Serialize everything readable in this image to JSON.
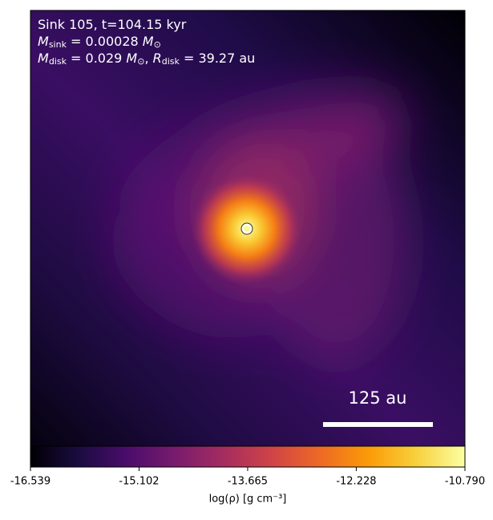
{
  "chart_data": {
    "type": "image",
    "annotation_lines": [
      [
        {
          "text": "Sink 105, t=104.15 kyr"
        }
      ],
      [
        {
          "text": "M",
          "style": "italic"
        },
        {
          "text": "sink",
          "style": "sub"
        },
        {
          "text": " = 0.00028 "
        },
        {
          "text": "M",
          "style": "italic"
        },
        {
          "text": "⊙",
          "style": "sub"
        }
      ],
      [
        {
          "text": "M",
          "style": "italic"
        },
        {
          "text": "disk",
          "style": "sub"
        },
        {
          "text": " = 0.029 "
        },
        {
          "text": "M",
          "style": "italic"
        },
        {
          "text": "⊙",
          "style": "sub"
        },
        {
          "text": ", "
        },
        {
          "text": "R",
          "style": "italic"
        },
        {
          "text": "disk",
          "style": "sub"
        },
        {
          "text": " = 39.27 au"
        }
      ]
    ],
    "scale_bar_label": "125 au",
    "colormap": "inferno",
    "colorbar": {
      "label": "log(ρ) [g cm⁻³]",
      "xlim": [
        -16.539,
        -10.79
      ],
      "xticks": [
        -16.539,
        -15.102,
        -13.665,
        -12.228,
        {
          "value": -10.79,
          "label": "-10.790"
        }
      ]
    }
  }
}
